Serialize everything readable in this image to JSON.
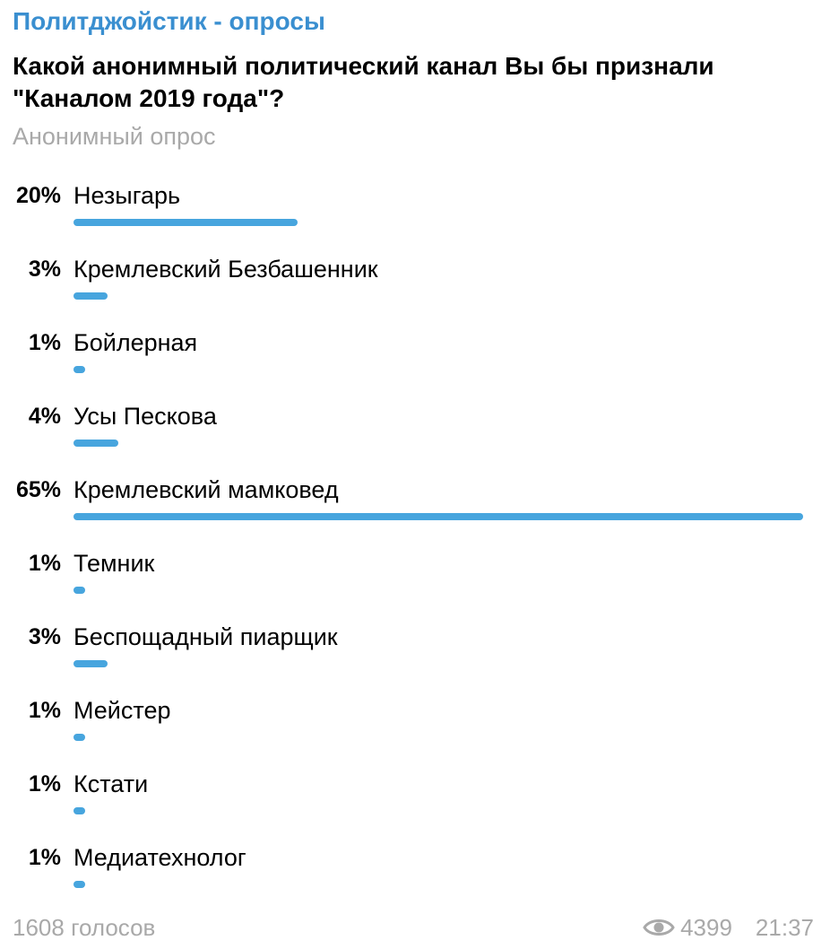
{
  "header": {
    "channel_name": "Политджойстик - опросы",
    "question": "Какой анонимный политический канал Вы бы признали \"Каналом 2019 года\"?",
    "poll_type": "Анонимный опрос"
  },
  "poll": {
    "options": [
      {
        "percent_label": "20%",
        "label": "Незыгарь",
        "percent": 20
      },
      {
        "percent_label": "3%",
        "label": "Кремлевский Безбашенник",
        "percent": 3
      },
      {
        "percent_label": "1%",
        "label": "Бойлерная",
        "percent": 1
      },
      {
        "percent_label": "4%",
        "label": "Усы Пескова",
        "percent": 4
      },
      {
        "percent_label": "65%",
        "label": "Кремлевский мамковед",
        "percent": 65
      },
      {
        "percent_label": "1%",
        "label": "Темник",
        "percent": 1
      },
      {
        "percent_label": "3%",
        "label": "Беспощадный пиарщик",
        "percent": 3
      },
      {
        "percent_label": "1%",
        "label": "Мейстер",
        "percent": 1
      },
      {
        "percent_label": "1%",
        "label": "Кстати",
        "percent": 1
      },
      {
        "percent_label": "1%",
        "label": "Медиатехнолог",
        "percent": 1
      }
    ],
    "bar_color": "#47a5de"
  },
  "footer": {
    "votes": "1608 голосов",
    "views": "4399",
    "time": "21:37",
    "views_icon": "eye-icon"
  }
}
